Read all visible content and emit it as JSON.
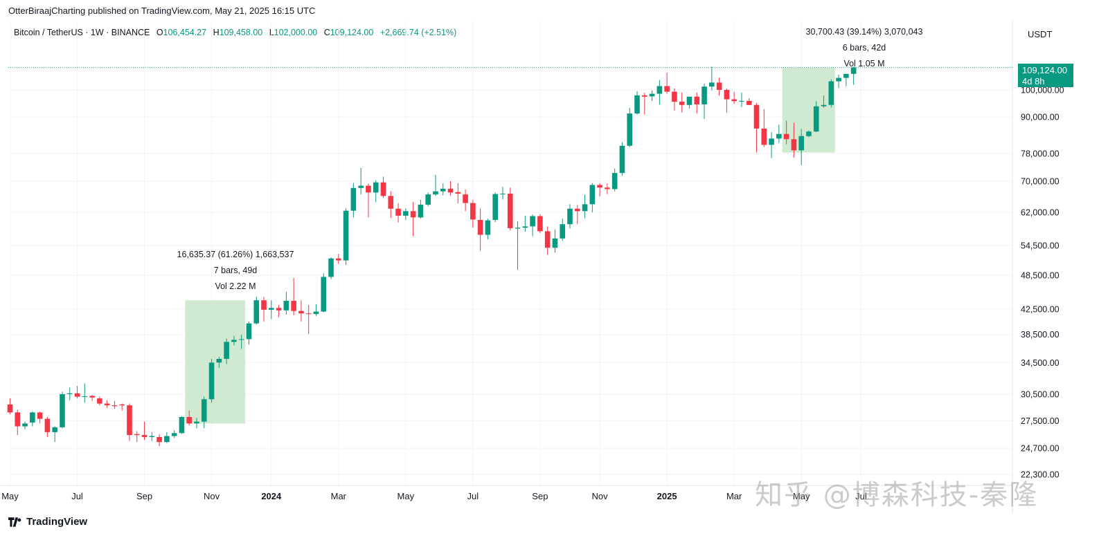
{
  "header": {
    "published_line": "OtterBiraajCharting published on TradingView.com, May 21, 2025 16:15 UTC"
  },
  "legend": {
    "symbol": "Bitcoin / TetherUS · 1W · BINANCE",
    "open_label": "O",
    "open": "106,454.27",
    "high_label": "H",
    "high": "109,458.00",
    "low_label": "L",
    "low": "102,000.00",
    "close_label": "C",
    "close": "109,124.00",
    "change": "+2,669.74 (+2.51%)"
  },
  "price_scale": {
    "currency": "USDT",
    "current_price": "109,124.00",
    "countdown": "4d 8h"
  },
  "footer": {
    "brand": "TradingView"
  },
  "watermark": "知乎 @博森科技-秦隆",
  "measurements": [
    {
      "line1": "16,635.37 (61.26%) 1,663,537",
      "line2": "7 bars, 49d",
      "line3": "Vol 2.22 M"
    },
    {
      "line1": "30,700.43 (39.14%) 3,070,043",
      "line2": "6 bars, 42d",
      "line3": "Vol 1.05 M"
    }
  ],
  "colors": {
    "up": "#089981",
    "down": "#f23645",
    "range_fill": "#c8e6c9",
    "grid": "#f0f3fa"
  },
  "chart_data": {
    "type": "candlestick",
    "timeframe": "1W",
    "y_scale": "log",
    "y_ticks": [
      {
        "value": 100000,
        "label": "100,000.00"
      },
      {
        "value": 90000,
        "label": "90,000.00"
      },
      {
        "value": 78000,
        "label": "78,000.00"
      },
      {
        "value": 70000,
        "label": "70,000.00"
      },
      {
        "value": 62000,
        "label": "62,000.00"
      },
      {
        "value": 54500,
        "label": "54,500.00"
      },
      {
        "value": 48500,
        "label": "48,500.00"
      },
      {
        "value": 42500,
        "label": "42,500.00"
      },
      {
        "value": 38500,
        "label": "38,500.00"
      },
      {
        "value": 34500,
        "label": "34,500.00"
      },
      {
        "value": 30500,
        "label": "30,500.00"
      },
      {
        "value": 27500,
        "label": "27,500.00"
      },
      {
        "value": 24700,
        "label": "24,700.00"
      },
      {
        "value": 22300,
        "label": "22,300.00"
      }
    ],
    "x_ticks": [
      {
        "index": 0,
        "label": "May",
        "bold": false
      },
      {
        "index": 9,
        "label": "Jul",
        "bold": false
      },
      {
        "index": 18,
        "label": "Sep",
        "bold": false
      },
      {
        "index": 27,
        "label": "Nov",
        "bold": false
      },
      {
        "index": 35,
        "label": "2024",
        "bold": true
      },
      {
        "index": 44,
        "label": "Mar",
        "bold": false
      },
      {
        "index": 53,
        "label": "May",
        "bold": false
      },
      {
        "index": 62,
        "label": "Jul",
        "bold": false
      },
      {
        "index": 71,
        "label": "Sep",
        "bold": false
      },
      {
        "index": 79,
        "label": "Nov",
        "bold": false
      },
      {
        "index": 88,
        "label": "2025",
        "bold": true
      },
      {
        "index": 97,
        "label": "Mar",
        "bold": false
      },
      {
        "index": 106,
        "label": "May",
        "bold": false
      },
      {
        "index": 114,
        "label": "Jul",
        "bold": false
      }
    ],
    "candles": [
      [
        29300,
        30000,
        28200,
        28400
      ],
      [
        28400,
        28700,
        26000,
        26900
      ],
      [
        26900,
        27400,
        26600,
        27200
      ],
      [
        27300,
        28500,
        26900,
        28400
      ],
      [
        28400,
        28500,
        27200,
        27700
      ],
      [
        27700,
        27900,
        25800,
        26300
      ],
      [
        26300,
        26900,
        25300,
        26800
      ],
      [
        26800,
        30800,
        26700,
        30500
      ],
      [
        30500,
        31300,
        29800,
        30600
      ],
      [
        30600,
        31500,
        30000,
        30200
      ],
      [
        30200,
        31800,
        29500,
        30250
      ],
      [
        30300,
        30400,
        29700,
        30100
      ],
      [
        30000,
        30200,
        29200,
        29400
      ],
      [
        29400,
        29800,
        28900,
        29200
      ],
      [
        29200,
        29700,
        28800,
        29100
      ],
      [
        29300,
        29400,
        28600,
        29200
      ],
      [
        29200,
        29400,
        25400,
        26000
      ],
      [
        26100,
        26400,
        25300,
        26000
      ],
      [
        26000,
        27400,
        25500,
        25800
      ],
      [
        25800,
        26300,
        25400,
        25900
      ],
      [
        25800,
        26100,
        24900,
        25300
      ],
      [
        25300,
        26300,
        25200,
        25900
      ],
      [
        25900,
        26500,
        25700,
        26200
      ],
      [
        26200,
        28000,
        26100,
        27900
      ],
      [
        27900,
        28600,
        27000,
        27200
      ],
      [
        27200,
        27800,
        26700,
        27400
      ],
      [
        27400,
        30200,
        26700,
        29900
      ],
      [
        29900,
        35000,
        29500,
        34500
      ],
      [
        34500,
        35300,
        33800,
        35000
      ],
      [
        35000,
        37900,
        34300,
        37400
      ],
      [
        37400,
        38300,
        36900,
        37700
      ],
      [
        37700,
        38500,
        36400,
        37800
      ],
      [
        37800,
        40500,
        37000,
        40200
      ],
      [
        40200,
        44600,
        40000,
        44000
      ],
      [
        44000,
        44600,
        40500,
        42400
      ],
      [
        42400,
        44000,
        40900,
        42700
      ],
      [
        42700,
        43200,
        41200,
        42300
      ],
      [
        42300,
        45500,
        41600,
        43900
      ],
      [
        43900,
        48000,
        41500,
        42200
      ],
      [
        42200,
        44000,
        40500,
        41800
      ],
      [
        41800,
        43200,
        38600,
        41700
      ],
      [
        41700,
        43300,
        41400,
        42100
      ],
      [
        42100,
        48900,
        42000,
        48200
      ],
      [
        48200,
        52000,
        47800,
        51800
      ],
      [
        51800,
        52700,
        50700,
        51400
      ],
      [
        51400,
        63000,
        50500,
        62400
      ],
      [
        62400,
        69500,
        60800,
        68200
      ],
      [
        68200,
        73800,
        66500,
        68800
      ],
      [
        68800,
        69400,
        60800,
        67000
      ],
      [
        67000,
        70300,
        64500,
        69700
      ],
      [
        69700,
        71300,
        65600,
        66100
      ],
      [
        66100,
        67300,
        60700,
        62900
      ],
      [
        62900,
        64300,
        59600,
        61200
      ],
      [
        61200,
        63000,
        60200,
        62300
      ],
      [
        62300,
        64600,
        56500,
        60800
      ],
      [
        60800,
        65100,
        60500,
        63900
      ],
      [
        63900,
        67000,
        63500,
        66500
      ],
      [
        66500,
        71800,
        66100,
        67300
      ],
      [
        67300,
        69400,
        66300,
        68000
      ],
      [
        68000,
        70000,
        66200,
        67000
      ],
      [
        67100,
        69500,
        64200,
        66700
      ],
      [
        66500,
        67800,
        62300,
        64300
      ],
      [
        64300,
        65100,
        58400,
        60300
      ],
      [
        60200,
        62900,
        53400,
        56800
      ],
      [
        56800,
        60500,
        55800,
        60100
      ],
      [
        60200,
        67000,
        59700,
        66600
      ],
      [
        66600,
        68500,
        65200,
        66700
      ],
      [
        66700,
        68300,
        57800,
        58300
      ],
      [
        58200,
        59900,
        49500,
        58400
      ],
      [
        58400,
        61200,
        57500,
        58700
      ],
      [
        58700,
        61500,
        56500,
        61100
      ],
      [
        61100,
        61600,
        57200,
        57600
      ],
      [
        57600,
        58700,
        52500,
        54000
      ],
      [
        54000,
        58000,
        53000,
        56000
      ],
      [
        56000,
        60500,
        55500,
        59200
      ],
      [
        59200,
        64000,
        58200,
        62900
      ],
      [
        62900,
        63800,
        59200,
        62300
      ],
      [
        62300,
        66500,
        60600,
        64000
      ],
      [
        64000,
        69500,
        62000,
        69000
      ],
      [
        69000,
        69500,
        66000,
        68300
      ],
      [
        68300,
        69400,
        66600,
        67900
      ],
      [
        67900,
        73600,
        67300,
        72300
      ],
      [
        72300,
        81500,
        71500,
        80400
      ],
      [
        80400,
        93300,
        80000,
        91200
      ],
      [
        91200,
        99500,
        90800,
        97900
      ],
      [
        97900,
        98900,
        90800,
        97400
      ],
      [
        97500,
        99800,
        95800,
        98500
      ],
      [
        98500,
        104000,
        94400,
        101500
      ],
      [
        101500,
        107000,
        98500,
        99300
      ],
      [
        99300,
        100600,
        92200,
        95500
      ],
      [
        95500,
        99000,
        91500,
        94300
      ],
      [
        94300,
        97000,
        93000,
        97400
      ],
      [
        97400,
        99000,
        91200,
        94500
      ],
      [
        94500,
        102500,
        89300,
        101300
      ],
      [
        101300,
        109500,
        99800,
        102900
      ],
      [
        102900,
        104900,
        97800,
        100000
      ],
      [
        100000,
        100600,
        91500,
        96400
      ],
      [
        96400,
        99200,
        94700,
        95700
      ],
      [
        95700,
        99000,
        93500,
        95800
      ],
      [
        95800,
        96800,
        94200,
        94300
      ],
      [
        94300,
        95000,
        78300,
        86000
      ],
      [
        86000,
        92800,
        80000,
        80700
      ],
      [
        80700,
        84800,
        76600,
        82700
      ],
      [
        82700,
        87300,
        81300,
        84200
      ],
      [
        84200,
        88700,
        80900,
        82500
      ],
      [
        82500,
        88000,
        76800,
        79000
      ],
      [
        79000,
        85900,
        74600,
        83500
      ],
      [
        83500,
        85400,
        83100,
        85000
      ],
      [
        85000,
        95700,
        84800,
        93800
      ],
      [
        93800,
        97800,
        93300,
        94300
      ],
      [
        94300,
        104200,
        93400,
        103400
      ],
      [
        103400,
        106100,
        100700,
        104800
      ],
      [
        104800,
        106500,
        101400,
        106450
      ],
      [
        106454.27,
        109458,
        102000,
        109124
      ]
    ]
  }
}
